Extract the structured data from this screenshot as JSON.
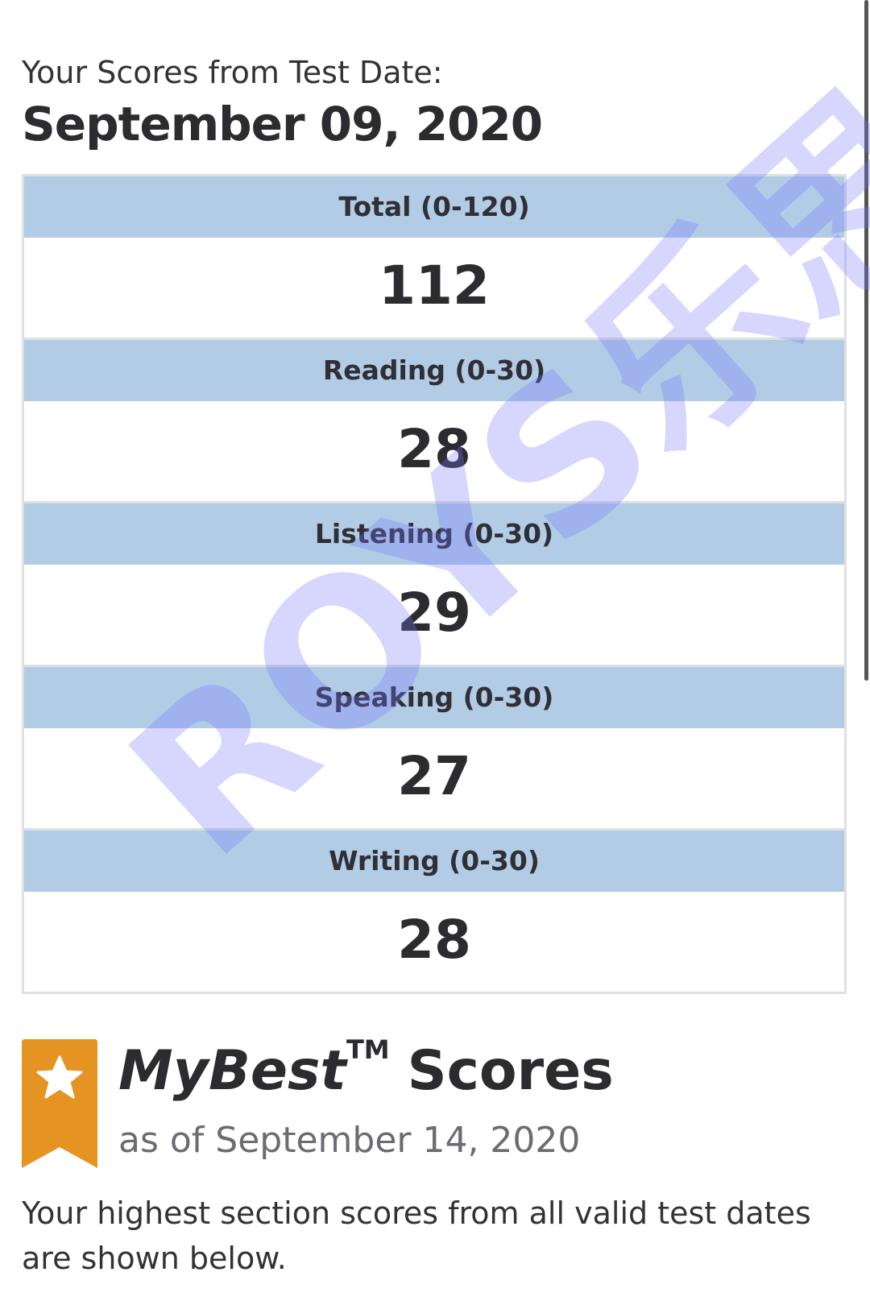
{
  "header": {
    "subtitle": "Your Scores from Test Date:",
    "test_date": "September 09, 2020"
  },
  "scores": [
    {
      "label": "Total (0-120)",
      "value": "112"
    },
    {
      "label": "Reading (0-30)",
      "value": "28"
    },
    {
      "label": "Listening (0-30)",
      "value": "29"
    },
    {
      "label": "Speaking (0-30)",
      "value": "27"
    },
    {
      "label": "Writing (0-30)",
      "value": "28"
    }
  ],
  "mybest": {
    "title_brand": "MyBest",
    "trademark": "TM",
    "title_rest": "Scores",
    "as_of": "as of September 14, 2020",
    "description": "Your highest section scores from all valid test dates are shown below.",
    "badge_color": "#e59423",
    "badge_icon": "star-icon"
  },
  "watermark": "ROYS乐思",
  "colors": {
    "header_bg": "#b2cce6",
    "text": "#2b2b30"
  }
}
